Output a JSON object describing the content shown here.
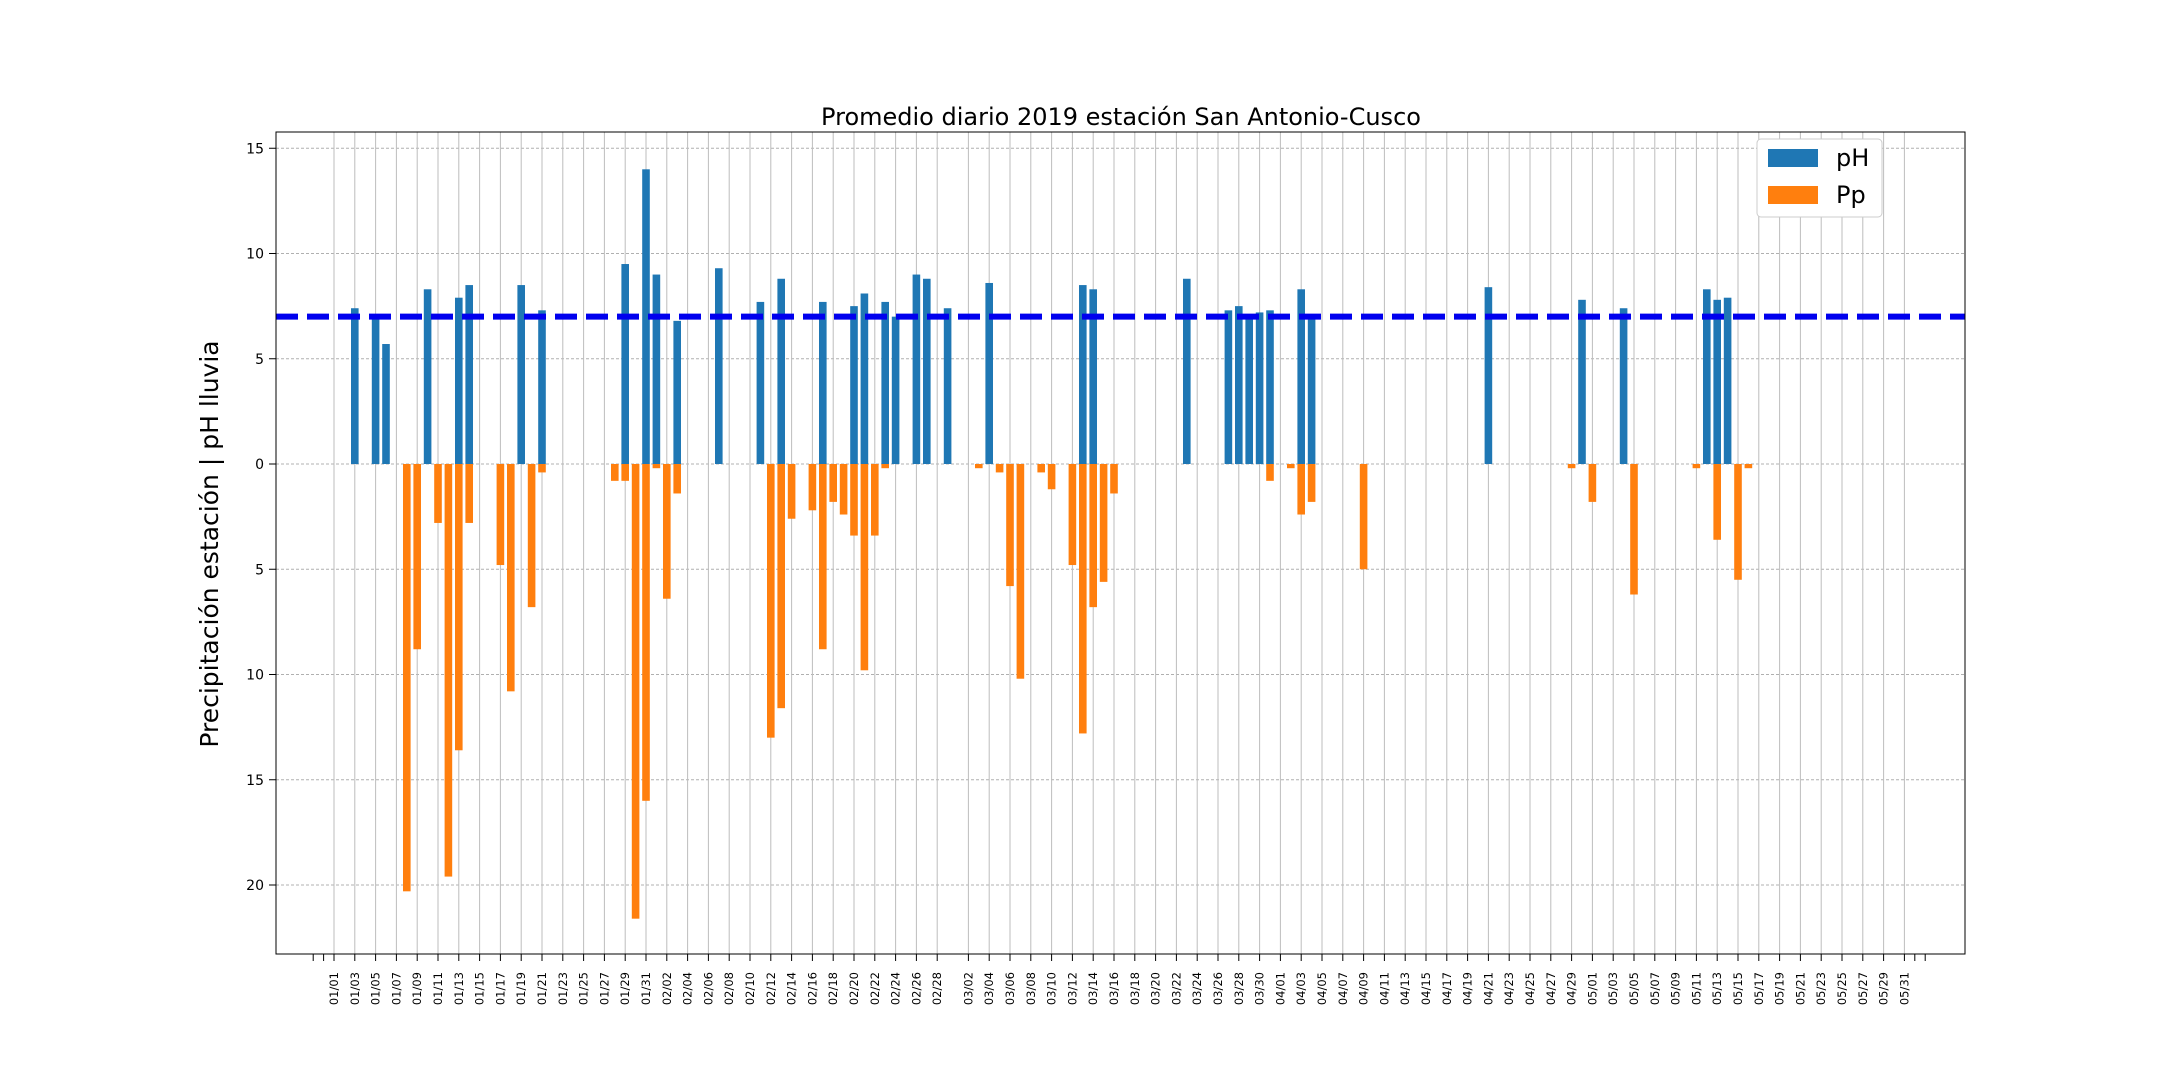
{
  "chart_data": {
    "type": "bar",
    "title": "Promedio diario 2019 estación San Antonio-Cusco",
    "xlabel": "",
    "ylabel": "Precipitación estación | pH lluvia",
    "y_tick_values": [
      15,
      10,
      5,
      0,
      -5,
      -10,
      -15,
      -20
    ],
    "y_tick_labels": [
      "15",
      "10",
      "5",
      "0",
      "5",
      "10",
      "15",
      "20"
    ],
    "ylim": [
      -23.5,
      15.7
    ],
    "x_tick_labels": [
      "01/01",
      "01/03",
      "01/05",
      "01/07",
      "01/09",
      "01/11",
      "01/13",
      "01/15",
      "01/17",
      "01/19",
      "01/21",
      "01/23",
      "01/25",
      "01/27",
      "01/29",
      "01/31",
      "02/02",
      "02/04",
      "02/06",
      "02/08",
      "02/10",
      "02/12",
      "02/14",
      "02/16",
      "02/18",
      "02/20",
      "02/22",
      "02/24",
      "02/26",
      "02/28",
      "03/02",
      "03/04",
      "03/06",
      "03/08",
      "03/10",
      "03/12",
      "03/14",
      "03/16",
      "03/18",
      "03/20",
      "03/22",
      "03/24",
      "03/26",
      "03/28",
      "03/30",
      "04/01",
      "04/03",
      "04/05",
      "04/07",
      "04/09",
      "04/11",
      "04/13",
      "04/15",
      "04/17",
      "04/19",
      "04/21",
      "04/23",
      "04/25",
      "04/27",
      "04/29",
      "05/01",
      "05/03",
      "05/05",
      "05/07",
      "05/09",
      "05/11",
      "05/13",
      "05/15",
      "05/17",
      "05/19",
      "05/21",
      "05/23",
      "05/25",
      "05/27",
      "05/29",
      "05/31"
    ],
    "reference_line": {
      "y": 7.0,
      "color": "#0000ee",
      "style": "dashed"
    },
    "grid": true,
    "legend_position": "top-right",
    "series": [
      {
        "name": "pH",
        "color": "#1f77b4",
        "points": [
          [
            "01/03",
            7.4
          ],
          [
            "01/05",
            7.0
          ],
          [
            "01/06",
            5.7
          ],
          [
            "01/10",
            8.3
          ],
          [
            "01/13",
            7.9
          ],
          [
            "01/14",
            8.5
          ],
          [
            "01/19",
            8.5
          ],
          [
            "01/21",
            7.3
          ],
          [
            "01/29",
            9.5
          ],
          [
            "01/31",
            14.0
          ],
          [
            "02/01",
            9.0
          ],
          [
            "02/03",
            6.8
          ],
          [
            "02/07",
            9.3
          ],
          [
            "02/11",
            7.7
          ],
          [
            "02/13",
            8.8
          ],
          [
            "02/17",
            7.7
          ],
          [
            "02/20",
            7.5
          ],
          [
            "02/21",
            8.1
          ],
          [
            "02/23",
            7.7
          ],
          [
            "02/24",
            7.0
          ],
          [
            "02/26",
            9.0
          ],
          [
            "02/27",
            8.8
          ],
          [
            "02/29",
            7.4
          ],
          [
            "03/04",
            8.6
          ],
          [
            "03/13",
            8.5
          ],
          [
            "03/14",
            8.3
          ],
          [
            "03/23",
            8.8
          ],
          [
            "03/27",
            7.3
          ],
          [
            "03/28",
            7.5
          ],
          [
            "03/29",
            7.1
          ],
          [
            "03/30",
            7.2
          ],
          [
            "03/31",
            7.3
          ],
          [
            "04/03",
            8.3
          ],
          [
            "04/04",
            6.9
          ],
          [
            "04/21",
            8.4
          ],
          [
            "04/30",
            7.8
          ],
          [
            "05/04",
            7.4
          ],
          [
            "05/12",
            8.3
          ],
          [
            "05/13",
            7.8
          ],
          [
            "05/14",
            7.9
          ]
        ]
      },
      {
        "name": "Pp",
        "color": "#ff7f0e",
        "points": [
          [
            "01/08",
            -20.3
          ],
          [
            "01/09",
            -8.8
          ],
          [
            "01/11",
            -2.8
          ],
          [
            "01/12",
            -19.6
          ],
          [
            "01/13",
            -13.6
          ],
          [
            "01/14",
            -2.8
          ],
          [
            "01/17",
            -4.8
          ],
          [
            "01/18",
            -10.8
          ],
          [
            "01/20",
            -6.8
          ],
          [
            "01/21",
            -0.4
          ],
          [
            "01/28",
            -0.8
          ],
          [
            "01/29",
            -0.8
          ],
          [
            "01/30",
            -21.6
          ],
          [
            "01/31",
            -16.0
          ],
          [
            "02/01",
            -0.2
          ],
          [
            "02/02",
            -6.4
          ],
          [
            "02/03",
            -1.4
          ],
          [
            "02/12",
            -13.0
          ],
          [
            "02/13",
            -11.6
          ],
          [
            "02/14",
            -2.6
          ],
          [
            "02/16",
            -2.2
          ],
          [
            "02/17",
            -8.8
          ],
          [
            "02/18",
            -1.8
          ],
          [
            "02/19",
            -2.4
          ],
          [
            "02/20",
            -3.4
          ],
          [
            "02/21",
            -9.8
          ],
          [
            "02/22",
            -3.4
          ],
          [
            "02/23",
            -0.2
          ],
          [
            "03/03",
            -0.2
          ],
          [
            "03/05",
            -0.4
          ],
          [
            "03/06",
            -5.8
          ],
          [
            "03/07",
            -10.2
          ],
          [
            "03/09",
            -0.4
          ],
          [
            "03/10",
            -1.2
          ],
          [
            "03/12",
            -4.8
          ],
          [
            "03/13",
            -12.8
          ],
          [
            "03/14",
            -6.8
          ],
          [
            "03/15",
            -5.6
          ],
          [
            "03/16",
            -1.4
          ],
          [
            "03/31",
            -0.8
          ],
          [
            "04/02",
            -0.2
          ],
          [
            "04/03",
            -2.4
          ],
          [
            "04/04",
            -1.8
          ],
          [
            "04/09",
            -5.0
          ],
          [
            "04/29",
            -0.2
          ],
          [
            "05/01",
            -1.8
          ],
          [
            "05/05",
            -6.2
          ],
          [
            "05/11",
            -0.2
          ],
          [
            "05/13",
            -3.6
          ],
          [
            "05/15",
            -5.5
          ],
          [
            "05/16",
            -0.2
          ]
        ]
      }
    ]
  }
}
